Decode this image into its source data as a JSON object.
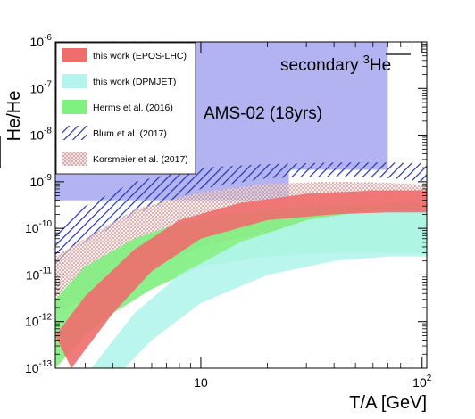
{
  "chart_data": {
    "type": "area",
    "x_scale": "log",
    "y_scale": "log",
    "xlim": [
      2.2,
      105
    ],
    "ylim": [
      1e-13,
      1e-06
    ],
    "xlabel": "T/A [GeV]",
    "ylabel_numerator": "He",
    "ylabel_separator": "/He",
    "x_ticks": [
      {
        "value": 10,
        "label": "10"
      },
      {
        "value": 100,
        "base": "10",
        "exp": "2"
      }
    ],
    "y_ticks": [
      {
        "value": 1e-13,
        "base": "10",
        "exp": "-13"
      },
      {
        "value": 1e-12,
        "base": "10",
        "exp": "-12"
      },
      {
        "value": 1e-11,
        "base": "10",
        "exp": "-11"
      },
      {
        "value": 1e-10,
        "base": "10",
        "exp": "-10"
      },
      {
        "value": 1e-09,
        "base": "10",
        "exp": "-9"
      },
      {
        "value": 1e-08,
        "base": "10",
        "exp": "-8"
      },
      {
        "value": 1e-07,
        "base": "10",
        "exp": "-7"
      },
      {
        "value": 1e-06,
        "base": "10",
        "exp": "-6"
      }
    ],
    "annotations": {
      "secondary_prefix": "secondary",
      "secondary_sup": "3",
      "secondary_species": "He",
      "ams": "AMS-02 (18yrs)"
    },
    "legend_position": "top-left",
    "sensitivity_region": {
      "name": "AMS-02 (18yrs)",
      "color": "#b3b3f2",
      "polygon": [
        [
          2.2,
          1e-06
        ],
        [
          70,
          1e-06
        ],
        [
          70,
          1.8e-09
        ],
        [
          25,
          1.8e-09
        ],
        [
          25,
          4e-10
        ],
        [
          2.2,
          4e-10
        ]
      ]
    },
    "series": [
      {
        "name": "Blum et al. (2017)",
        "color": "#2233aa",
        "style": "hatch",
        "lower": [
          [
            2.2,
            1.5e-11
          ],
          [
            3,
            5e-11
          ],
          [
            5,
            2e-10
          ],
          [
            10,
            7e-10
          ],
          [
            20,
            1.2e-09
          ],
          [
            40,
            1.3e-09
          ],
          [
            70,
            1.2e-09
          ],
          [
            105,
            1e-09
          ]
        ],
        "upper": [
          [
            2.2,
            1e-10
          ],
          [
            3,
            3e-10
          ],
          [
            5,
            1e-09
          ],
          [
            10,
            2e-09
          ],
          [
            20,
            2.4e-09
          ],
          [
            40,
            2.6e-09
          ],
          [
            70,
            2.6e-09
          ],
          [
            105,
            2.5e-09
          ]
        ]
      },
      {
        "name": "Korsmeier et al. (2017)",
        "color": "#c08080",
        "style": "dots",
        "lower": [
          [
            2.2,
            1.5e-12
          ],
          [
            3,
            3e-12
          ],
          [
            5,
            1e-11
          ],
          [
            10,
            4e-11
          ],
          [
            20,
            8e-11
          ],
          [
            40,
            1e-10
          ],
          [
            70,
            1e-10
          ],
          [
            105,
            9e-11
          ]
        ],
        "upper": [
          [
            2.2,
            2.5e-11
          ],
          [
            3,
            6e-11
          ],
          [
            5,
            2.5e-10
          ],
          [
            10,
            6e-10
          ],
          [
            20,
            9e-10
          ],
          [
            40,
            1e-09
          ],
          [
            70,
            9.5e-10
          ],
          [
            105,
            8.5e-10
          ]
        ]
      },
      {
        "name": "Herms et al. (2016)",
        "color": "#80f080",
        "style": "fill",
        "lower": [
          [
            2.2,
            1e-13
          ],
          [
            3,
            5e-13
          ],
          [
            4,
            1.5e-12
          ],
          [
            6,
            5e-12
          ],
          [
            10,
            1.5e-11
          ],
          [
            20,
            2.5e-11
          ],
          [
            40,
            3e-11
          ],
          [
            70,
            3e-11
          ],
          [
            105,
            2.8e-11
          ]
        ],
        "upper": [
          [
            2.2,
            3e-12
          ],
          [
            3,
            1.5e-11
          ],
          [
            5,
            6e-11
          ],
          [
            8,
            1.3e-10
          ],
          [
            15,
            2.2e-10
          ],
          [
            30,
            3e-10
          ],
          [
            60,
            3.3e-10
          ],
          [
            105,
            3.5e-10
          ]
        ]
      },
      {
        "name": "this work (DPMJET)",
        "color": "#b3f5ec",
        "style": "fill",
        "lower": [
          [
            4.5,
            1e-13
          ],
          [
            6,
            4e-13
          ],
          [
            10,
            2.5e-12
          ],
          [
            20,
            1e-11
          ],
          [
            40,
            2e-11
          ],
          [
            70,
            2.5e-11
          ],
          [
            105,
            2.5e-11
          ]
        ],
        "upper": [
          [
            3.2,
            1e-13
          ],
          [
            5,
            1.5e-12
          ],
          [
            8,
            1e-11
          ],
          [
            15,
            5e-11
          ],
          [
            30,
            1.5e-10
          ],
          [
            60,
            2.5e-10
          ],
          [
            105,
            3e-10
          ]
        ]
      },
      {
        "name": "this work (EPOS-LHC)",
        "color": "#f06d6d",
        "style": "fill",
        "lower": [
          [
            2.6,
            1e-13
          ],
          [
            4,
            1.5e-12
          ],
          [
            6,
            1.2e-11
          ],
          [
            10,
            6e-11
          ],
          [
            20,
            1.5e-10
          ],
          [
            40,
            2e-10
          ],
          [
            70,
            2.2e-10
          ],
          [
            105,
            2.2e-10
          ]
        ],
        "upper": [
          [
            2.2,
            5e-13
          ],
          [
            3,
            3.5e-12
          ],
          [
            5,
            3.5e-11
          ],
          [
            8,
            1.5e-10
          ],
          [
            15,
            3.5e-10
          ],
          [
            30,
            5.5e-10
          ],
          [
            60,
            6.5e-10
          ],
          [
            105,
            6.5e-10
          ]
        ]
      }
    ]
  }
}
